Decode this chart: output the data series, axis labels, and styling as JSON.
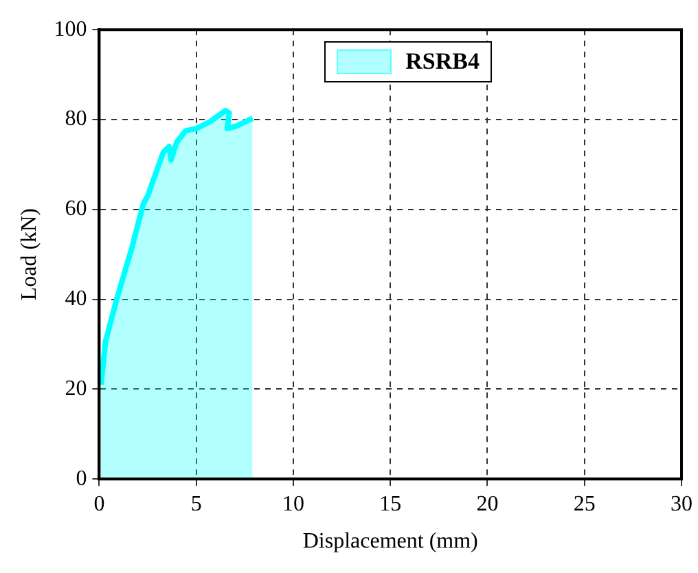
{
  "chart_data": {
    "type": "area",
    "xlabel": "Displacement (mm)",
    "ylabel": "Load (kN)",
    "xlim": [
      0,
      30
    ],
    "xticks": [
      0,
      5,
      10,
      15,
      20,
      25,
      30
    ],
    "ylim": [
      0,
      100
    ],
    "yticks": [
      0,
      20,
      40,
      60,
      80,
      100
    ],
    "grid": true,
    "legend": "top right",
    "series": [
      {
        "name": "RSRB4",
        "color": "#00ffff",
        "x": [
          0.09,
          0.32,
          0.9,
          1.7,
          2.27,
          2.5,
          3.3,
          3.6,
          3.7,
          4.0,
          4.45,
          5.0,
          5.7,
          6.5,
          6.7,
          6.6,
          7.1,
          7.9
        ],
        "values": [
          21,
          30.5,
          40,
          51.7,
          61.2,
          63,
          72.7,
          74,
          71,
          75,
          77.5,
          78,
          79.5,
          82,
          81.5,
          78,
          78.6,
          80.3
        ]
      }
    ]
  }
}
